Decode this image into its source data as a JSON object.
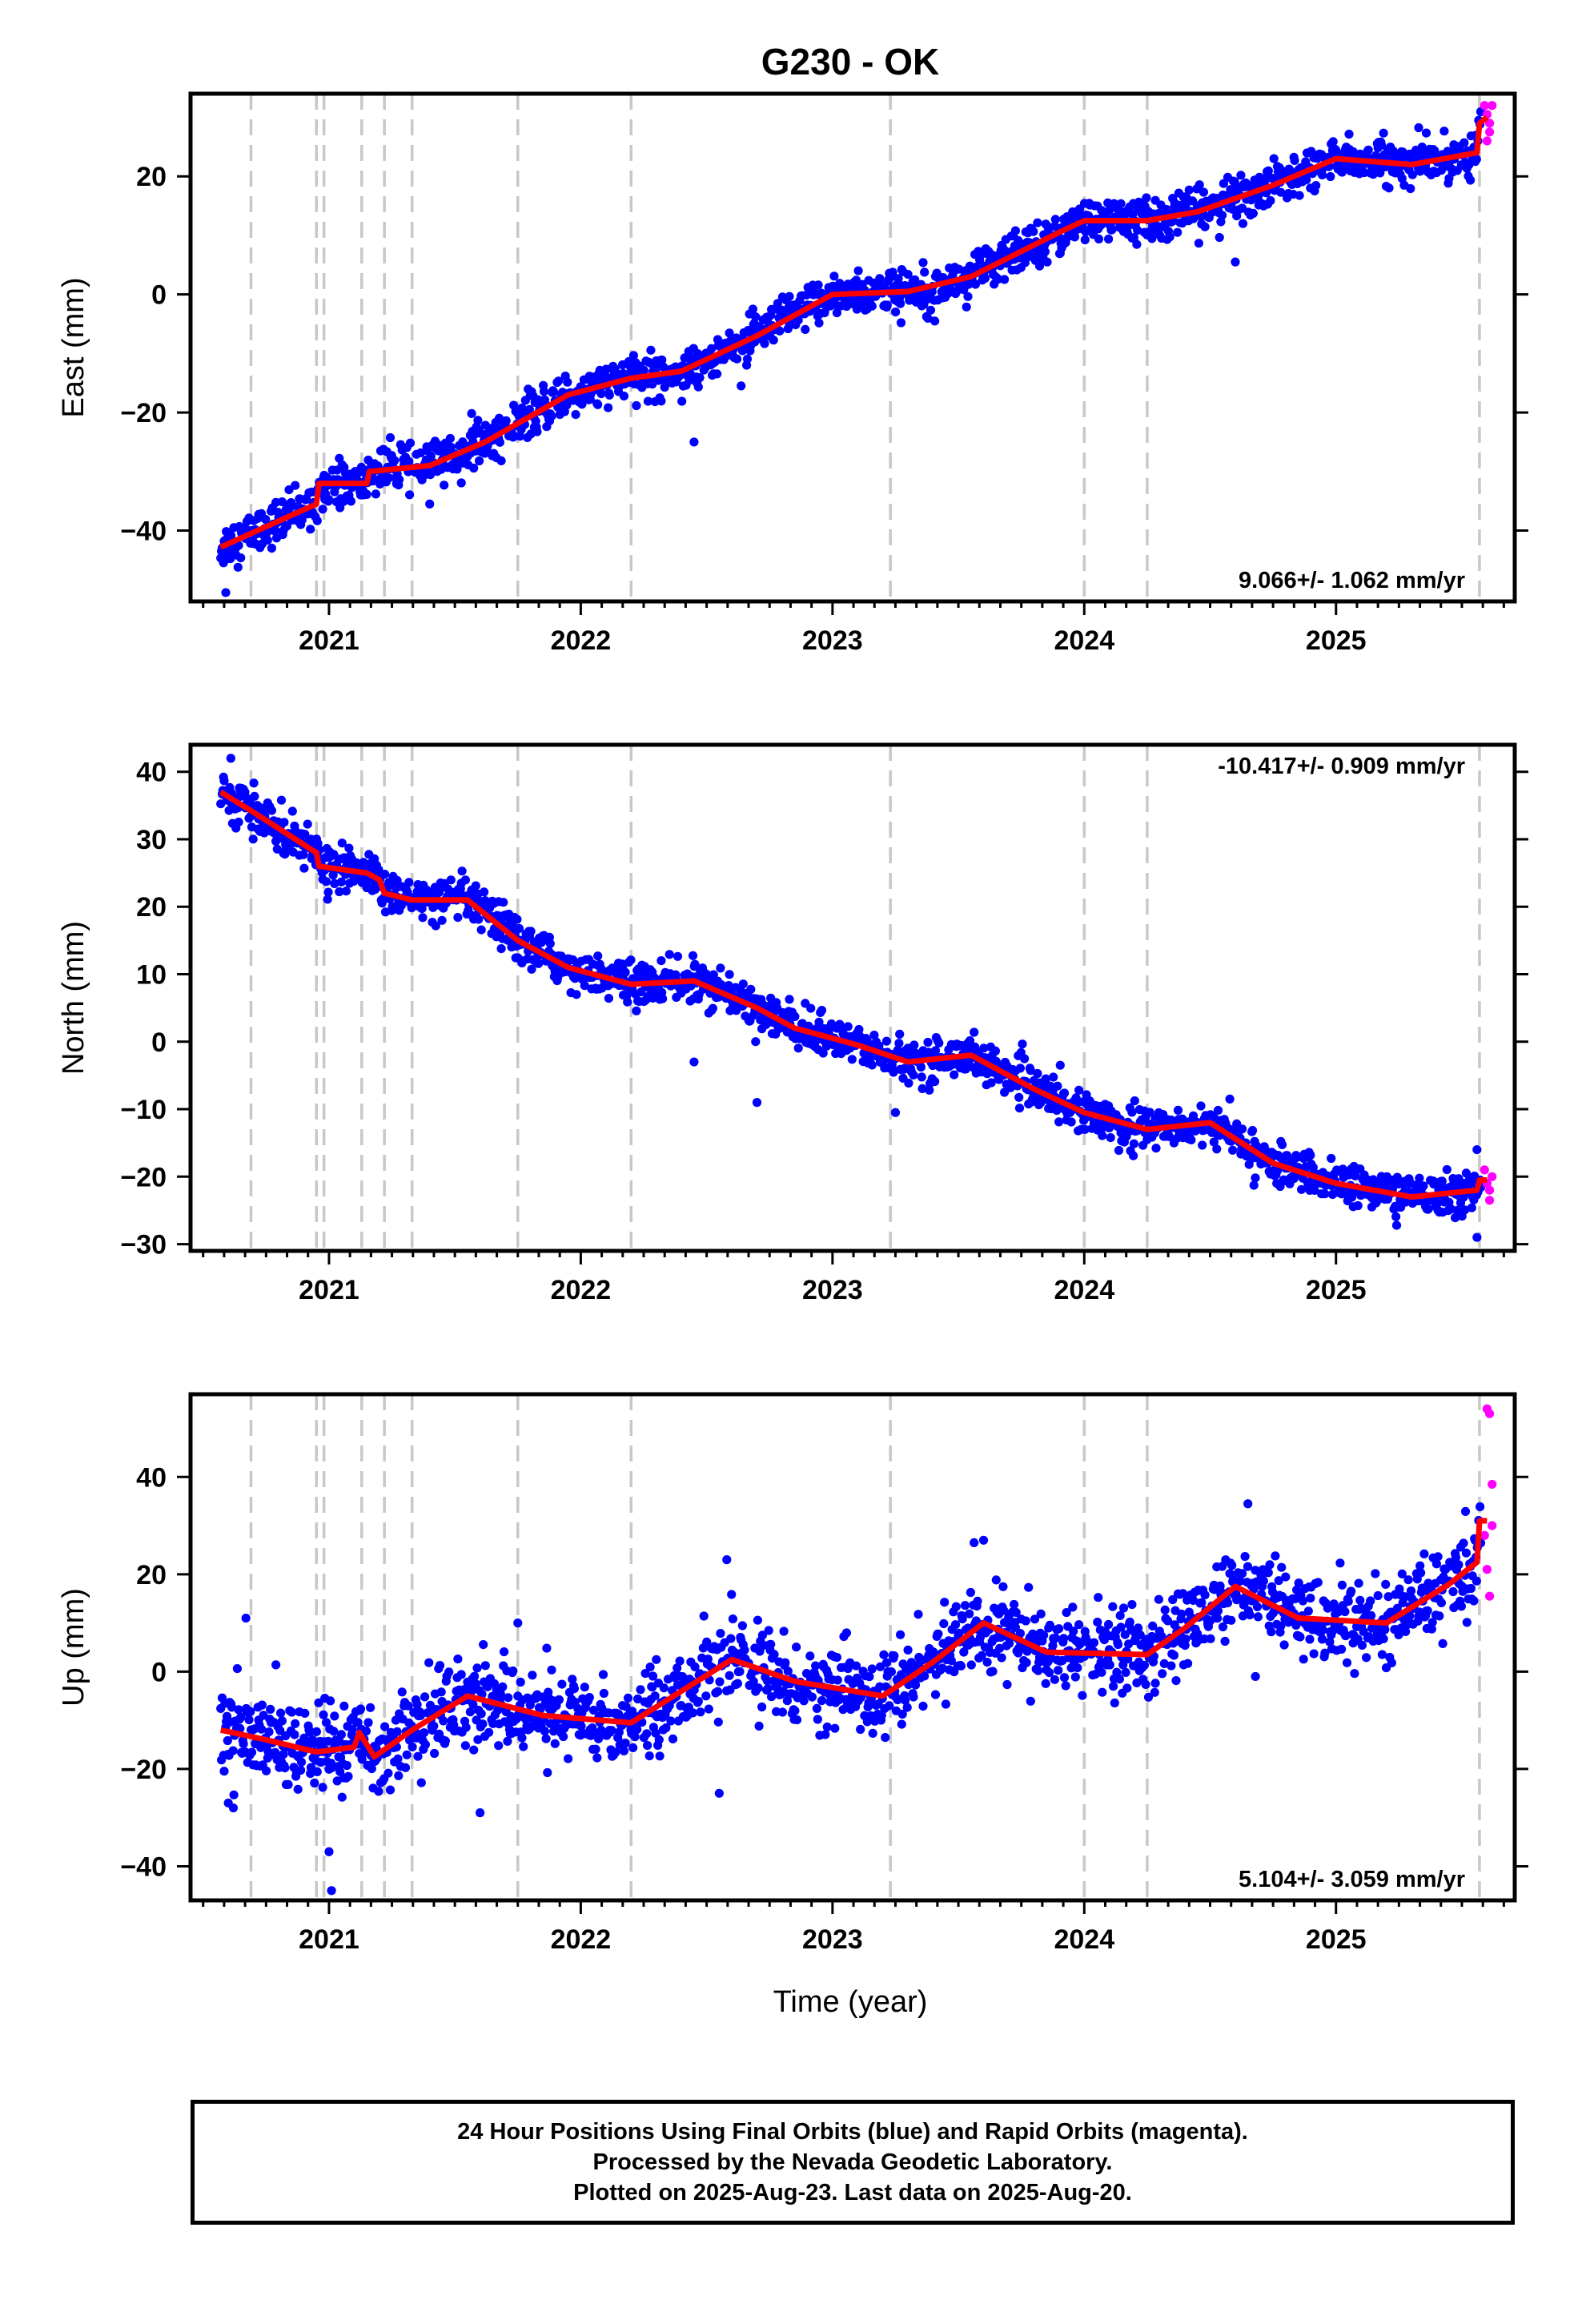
{
  "title": "G230 - OK",
  "xlabel": "Time (year)",
  "colors": {
    "final": "#0000ff",
    "rapid": "#ff00ff",
    "model": "#ff0000",
    "event_lines": "#c8c8c8"
  },
  "footer": {
    "line1": "24 Hour Positions Using Final Orbits (blue) and Rapid Orbits (magenta).",
    "line2": "Processed by the Nevada Geodetic Laboratory.",
    "line3": "Plotted on 2025-Aug-23. Last data on 2025-Aug-20."
  },
  "chart_data": [
    {
      "type": "scatter",
      "component": "East",
      "ylabel": "East (mm)",
      "xlim": [
        2020.45,
        2025.71
      ],
      "ylim": [
        -52,
        34
      ],
      "yticks": [
        -40,
        -20,
        0,
        20
      ],
      "xticks": [
        2021,
        2022,
        2023,
        2024,
        2025
      ],
      "rate_label": "9.066+/- 1.062 mm/yr",
      "rate_position": "bottom-right",
      "event_lines": [
        2020.69,
        2020.95,
        2020.98,
        2021.13,
        2021.22,
        2021.33,
        2021.75,
        2022.2,
        2023.23,
        2024.0,
        2024.25,
        2025.57
      ],
      "model_knots": [
        [
          2020.57,
          -42.8
        ],
        [
          2020.95,
          -35.5
        ],
        [
          2020.96,
          -32.0
        ],
        [
          2021.15,
          -32.0
        ],
        [
          2021.16,
          -30.0
        ],
        [
          2021.4,
          -29.0
        ],
        [
          2021.62,
          -25.0
        ],
        [
          2021.95,
          -17.0
        ],
        [
          2022.2,
          -14.2
        ],
        [
          2022.4,
          -13.0
        ],
        [
          2022.7,
          -7.0
        ],
        [
          2023.0,
          0.0
        ],
        [
          2023.3,
          0.5
        ],
        [
          2023.55,
          3.0
        ],
        [
          2023.9,
          10.5
        ],
        [
          2024.0,
          12.5
        ],
        [
          2024.25,
          12.5
        ],
        [
          2024.45,
          14.0
        ],
        [
          2024.75,
          18.5
        ],
        [
          2025.0,
          23.0
        ],
        [
          2025.3,
          22.0
        ],
        [
          2025.56,
          24.0
        ],
        [
          2025.57,
          29.0
        ],
        [
          2025.6,
          30.0
        ]
      ],
      "noise_sd": 1.8,
      "outliers": [
        [
          2020.59,
          -50.5
        ],
        [
          2021.4,
          -35.5
        ],
        [
          2022.45,
          -25.0
        ],
        [
          2024.6,
          5.5
        ]
      ],
      "rapid_points": [
        [
          2025.59,
          32.0
        ],
        [
          2025.6,
          30.5
        ],
        [
          2025.61,
          27.5
        ],
        [
          2025.6,
          26.0
        ],
        [
          2025.62,
          32.0
        ],
        [
          2025.61,
          29.0
        ]
      ]
    },
    {
      "type": "scatter",
      "component": "North",
      "ylabel": "North (mm)",
      "xlim": [
        2020.45,
        2025.71
      ],
      "ylim": [
        -31,
        44
      ],
      "yticks": [
        -30,
        -20,
        -10,
        0,
        10,
        20,
        30,
        40
      ],
      "xticks": [
        2021,
        2022,
        2023,
        2024,
        2025
      ],
      "rate_label": "-10.417+/- 0.909 mm/yr",
      "rate_position": "top-right",
      "event_lines": [
        2020.69,
        2020.95,
        2020.98,
        2021.13,
        2021.22,
        2021.33,
        2021.75,
        2022.2,
        2023.23,
        2024.0,
        2024.25,
        2025.57
      ],
      "model_knots": [
        [
          2020.57,
          37.0
        ],
        [
          2020.7,
          34.0
        ],
        [
          2020.95,
          28.0
        ],
        [
          2020.96,
          26.0
        ],
        [
          2021.15,
          25.0
        ],
        [
          2021.2,
          24.0
        ],
        [
          2021.22,
          22.0
        ],
        [
          2021.33,
          21.0
        ],
        [
          2021.55,
          21.0
        ],
        [
          2021.75,
          15.0
        ],
        [
          2021.95,
          11.0
        ],
        [
          2022.2,
          8.5
        ],
        [
          2022.45,
          9.0
        ],
        [
          2022.7,
          5.0
        ],
        [
          2022.85,
          2.0
        ],
        [
          2023.1,
          -0.5
        ],
        [
          2023.3,
          -3.0
        ],
        [
          2023.55,
          -2.0
        ],
        [
          2023.8,
          -7.0
        ],
        [
          2024.0,
          -10.5
        ],
        [
          2024.25,
          -13.0
        ],
        [
          2024.5,
          -12.0
        ],
        [
          2024.75,
          -18.0
        ],
        [
          2025.0,
          -21.0
        ],
        [
          2025.3,
          -23.0
        ],
        [
          2025.56,
          -22.0
        ],
        [
          2025.57,
          -20.5
        ],
        [
          2025.6,
          -20.5
        ]
      ],
      "noise_sd": 1.5,
      "outliers": [
        [
          2020.61,
          42.0
        ],
        [
          2022.45,
          -3.0
        ],
        [
          2022.7,
          -9.0
        ],
        [
          2023.25,
          -10.5
        ],
        [
          2025.56,
          -29.0
        ],
        [
          2025.56,
          -16.0
        ]
      ],
      "rapid_points": [
        [
          2025.59,
          -19.0
        ],
        [
          2025.6,
          -21.0
        ],
        [
          2025.61,
          -23.5
        ],
        [
          2025.62,
          -20.0
        ],
        [
          2025.61,
          -22.0
        ]
      ]
    },
    {
      "type": "scatter",
      "component": "Up",
      "ylabel": "Up (mm)",
      "xlim": [
        2020.45,
        2025.71
      ],
      "ylim": [
        -47,
        57
      ],
      "yticks": [
        -40,
        -20,
        0,
        20,
        40
      ],
      "xticks": [
        2021,
        2022,
        2023,
        2024,
        2025
      ],
      "rate_label": "5.104+/- 3.059 mm/yr",
      "rate_position": "bottom-right",
      "event_lines": [
        2020.69,
        2020.95,
        2020.98,
        2021.13,
        2021.22,
        2021.33,
        2021.75,
        2022.2,
        2023.23,
        2024.0,
        2024.25,
        2025.57
      ],
      "model_knots": [
        [
          2020.57,
          -12.0
        ],
        [
          2020.75,
          -14.0
        ],
        [
          2020.95,
          -16.5
        ],
        [
          2021.1,
          -15.5
        ],
        [
          2021.12,
          -12.5
        ],
        [
          2021.18,
          -17.5
        ],
        [
          2021.33,
          -12.0
        ],
        [
          2021.55,
          -5.0
        ],
        [
          2021.85,
          -9.0
        ],
        [
          2022.2,
          -10.5
        ],
        [
          2022.4,
          -4.0
        ],
        [
          2022.6,
          2.5
        ],
        [
          2022.85,
          -2.0
        ],
        [
          2023.2,
          -5.0
        ],
        [
          2023.4,
          2.0
        ],
        [
          2023.6,
          10.0
        ],
        [
          2023.85,
          4.0
        ],
        [
          2024.25,
          3.5
        ],
        [
          2024.4,
          9.0
        ],
        [
          2024.6,
          17.5
        ],
        [
          2024.85,
          11.0
        ],
        [
          2025.2,
          10.0
        ],
        [
          2025.45,
          18.0
        ],
        [
          2025.56,
          22.5
        ],
        [
          2025.57,
          31.0
        ],
        [
          2025.6,
          31.0
        ]
      ],
      "noise_sd": 4.2,
      "outliers": [
        [
          2020.6,
          -27.0
        ],
        [
          2020.62,
          -28.0
        ],
        [
          2020.67,
          11.0
        ],
        [
          2021.0,
          -37.0
        ],
        [
          2021.01,
          -45.0
        ],
        [
          2021.6,
          -29.0
        ],
        [
          2021.75,
          10.0
        ],
        [
          2022.58,
          23.0
        ],
        [
          2022.55,
          -25.0
        ],
        [
          2023.6,
          27.0
        ],
        [
          2024.65,
          34.5
        ],
        [
          2024.68,
          -1.0
        ]
      ],
      "rapid_points": [
        [
          2025.6,
          54.0
        ],
        [
          2025.61,
          53.0
        ],
        [
          2025.62,
          38.5
        ],
        [
          2025.6,
          21.0
        ],
        [
          2025.61,
          15.5
        ],
        [
          2025.62,
          30.0
        ],
        [
          2025.59,
          28.0
        ]
      ]
    }
  ]
}
